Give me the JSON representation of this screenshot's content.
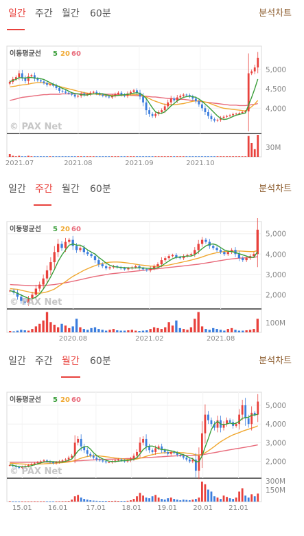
{
  "tabs": [
    "일간",
    "주간",
    "월간",
    "60분"
  ],
  "analysis_label": "분석차트",
  "legend": {
    "title": "이동평균선",
    "ma5": "5",
    "ma20": "20",
    "ma60": "60"
  },
  "watermark": "PAX Net",
  "colors": {
    "up": "#e8413c",
    "down": "#3b7ddd",
    "ma5": "#3a9e3a",
    "ma20": "#f0a830",
    "ma60": "#e86a7a",
    "accent": "#e8413c"
  },
  "chart_data": [
    {
      "type": "candlestick",
      "period": "일간",
      "active_tab": 0,
      "y_ticks": [
        4000,
        4500,
        5000
      ],
      "y_tick_labels": [
        "4,000",
        "4,500",
        "5,000"
      ],
      "ylim": [
        3350,
        5600
      ],
      "volume_label": "30M",
      "volume_max": 40,
      "x_labels": [
        "2021.07",
        "2021.08",
        "2021.09",
        "2021.10"
      ],
      "x_label_positions": [
        0.05,
        0.28,
        0.52,
        0.76
      ],
      "closes": [
        4680,
        4750,
        4800,
        4900,
        4780,
        4700,
        4820,
        4850,
        4760,
        4720,
        4690,
        4650,
        4600,
        4620,
        4580,
        4520,
        4450,
        4430,
        4400,
        4380,
        4350,
        4300,
        4320,
        4380,
        4340,
        4360,
        4400,
        4420,
        4380,
        4350,
        4320,
        4300,
        4280,
        4320,
        4360,
        4400,
        4350,
        4320,
        4380,
        4420,
        4460,
        4400,
        4300,
        4150,
        3950,
        3850,
        3800,
        3850,
        3900,
        3950,
        4050,
        4150,
        4250,
        4200,
        4280,
        4320,
        4350,
        4340,
        4300,
        4250,
        4180,
        4100,
        4000,
        3900,
        3800,
        3720,
        3680,
        3700,
        3750,
        3780,
        3800,
        3820,
        3850,
        3860,
        3880,
        3900,
        3920,
        4900,
        4950,
        5050,
        5300
      ],
      "ma5": [
        4680,
        4720,
        4740,
        4790,
        4780,
        4780,
        4790,
        4790,
        4780,
        4770,
        4760,
        4740,
        4700,
        4660,
        4620,
        4590,
        4550,
        4510,
        4480,
        4440,
        4400,
        4380,
        4370,
        4350,
        4340,
        4340,
        4360,
        4370,
        4380,
        4380,
        4370,
        4350,
        4330,
        4310,
        4320,
        4330,
        4340,
        4350,
        4360,
        4370,
        4390,
        4400,
        4380,
        4330,
        4250,
        4130,
        4010,
        3910,
        3870,
        3870,
        3910,
        3980,
        4060,
        4120,
        4190,
        4240,
        4280,
        4300,
        4310,
        4300,
        4280,
        4240,
        4180,
        4110,
        4040,
        3960,
        3880,
        3800,
        3740,
        3710,
        3720,
        3750,
        3790,
        3820,
        3840,
        3860,
        3880,
        4080,
        4280,
        4500,
        4750
      ],
      "ma20": [
        4550,
        4560,
        4570,
        4590,
        4600,
        4610,
        4620,
        4640,
        4650,
        4660,
        4660,
        4650,
        4640,
        4620,
        4600,
        4580,
        4560,
        4540,
        4520,
        4500,
        4480,
        4460,
        4440,
        4420,
        4400,
        4390,
        4380,
        4370,
        4360,
        4350,
        4340,
        4330,
        4330,
        4330,
        4330,
        4330,
        4330,
        4330,
        4330,
        4340,
        4350,
        4350,
        4340,
        4320,
        4290,
        4250,
        4210,
        4180,
        4150,
        4120,
        4100,
        4090,
        4090,
        4090,
        4100,
        4110,
        4120,
        4140,
        4160,
        4180,
        4190,
        4190,
        4180,
        4160,
        4140,
        4110,
        4080,
        4050,
        4020,
        4000,
        3990,
        3980,
        3970,
        3960,
        3950,
        3940,
        3930,
        3980,
        4040,
        4110,
        4200
      ],
      "ma60": [
        4200,
        4220,
        4240,
        4260,
        4280,
        4290,
        4300,
        4310,
        4320,
        4330,
        4340,
        4350,
        4350,
        4360,
        4360,
        4360,
        4360,
        4370,
        4370,
        4370,
        4370,
        4370,
        4370,
        4370,
        4370,
        4370,
        4370,
        4370,
        4370,
        4370,
        4370,
        4360,
        4360,
        4360,
        4360,
        4350,
        4350,
        4340,
        4340,
        4330,
        4330,
        4320,
        4320,
        4310,
        4310,
        4300,
        4290,
        4290,
        4280,
        4270,
        4260,
        4250,
        4250,
        4240,
        4240,
        4230,
        4230,
        4220,
        4210,
        4200,
        4190,
        4180,
        4170,
        4160,
        4150,
        4140,
        4130,
        4120,
        4110,
        4100,
        4090,
        4080,
        4080,
        4080,
        4070,
        4070,
        4070,
        4080,
        4090,
        4100,
        4120
      ],
      "volumes": [
        5,
        2,
        1,
        2,
        1,
        1,
        2,
        1,
        1,
        1,
        1,
        1,
        1,
        1,
        1,
        1,
        1,
        1,
        1,
        1,
        1,
        1,
        1,
        1,
        1,
        1,
        1,
        1,
        1,
        1,
        1,
        1,
        1,
        1,
        1,
        1,
        1,
        1,
        1,
        1,
        1,
        1,
        1,
        1,
        1,
        1,
        1,
        1,
        1,
        1,
        1,
        1,
        1,
        1,
        1,
        1,
        1,
        1,
        1,
        1,
        1,
        1,
        1,
        1,
        1,
        1,
        1,
        1,
        1,
        1,
        1,
        1,
        1,
        1,
        1,
        1,
        1,
        38,
        25,
        14,
        40
      ]
    },
    {
      "type": "candlestick",
      "period": "주간",
      "active_tab": 1,
      "y_ticks": [
        2000,
        3000,
        4000,
        5000
      ],
      "y_tick_labels": [
        "2,000",
        "3,000",
        "4,000",
        "5,000"
      ],
      "ylim": [
        1300,
        5600
      ],
      "volume_label": "100M",
      "volume_max": 130,
      "x_labels": [
        "2020.08",
        "2021.02",
        "2021.08"
      ],
      "x_label_positions": [
        0.26,
        0.56,
        0.84
      ],
      "closes": [
        2200,
        2100,
        1900,
        1700,
        1600,
        1800,
        2000,
        2300,
        2500,
        2800,
        3200,
        3600,
        4100,
        4500,
        4300,
        4600,
        4700,
        4400,
        4200,
        4300,
        4100,
        4000,
        3900,
        3700,
        3500,
        3400,
        3300,
        3350,
        3400,
        3350,
        3300,
        3250,
        3300,
        3350,
        3400,
        3300,
        3250,
        3200,
        3300,
        3400,
        3500,
        3700,
        3800,
        3900,
        3950,
        3850,
        3800,
        3900,
        3950,
        4000,
        4200,
        4500,
        4700,
        4600,
        4400,
        4300,
        4200,
        4100,
        4000,
        4100,
        4200,
        4000,
        3800,
        3700,
        3800,
        3900,
        4000,
        5200
      ],
      "ma5": [
        2200,
        2150,
        2070,
        1980,
        1900,
        1820,
        1800,
        1880,
        2040,
        2280,
        2560,
        2880,
        3240,
        3640,
        3940,
        4200,
        4440,
        4500,
        4440,
        4440,
        4340,
        4200,
        4100,
        4000,
        3840,
        3700,
        3560,
        3450,
        3390,
        3360,
        3340,
        3330,
        3320,
        3310,
        3320,
        3320,
        3320,
        3300,
        3290,
        3290,
        3330,
        3420,
        3540,
        3660,
        3770,
        3840,
        3860,
        3880,
        3900,
        3900,
        3970,
        4110,
        4270,
        4400,
        4480,
        4500,
        4440,
        4320,
        4200,
        4140,
        4120,
        4080,
        4020,
        3960,
        3900,
        3840,
        3840,
        4120
      ],
      "ma20": [
        2300,
        2280,
        2260,
        2220,
        2180,
        2140,
        2100,
        2080,
        2080,
        2100,
        2140,
        2200,
        2280,
        2400,
        2520,
        2640,
        2780,
        2900,
        3000,
        3100,
        3200,
        3280,
        3360,
        3430,
        3490,
        3540,
        3580,
        3600,
        3610,
        3610,
        3600,
        3580,
        3560,
        3530,
        3500,
        3470,
        3450,
        3430,
        3410,
        3400,
        3400,
        3410,
        3430,
        3460,
        3500,
        3540,
        3580,
        3620,
        3660,
        3700,
        3750,
        3800,
        3860,
        3920,
        3980,
        4030,
        4070,
        4100,
        4120,
        4130,
        4140,
        4150,
        4150,
        4140,
        4130,
        4120,
        4120,
        4170
      ],
      "ma60": [
        2500,
        2490,
        2480,
        2470,
        2460,
        2450,
        2440,
        2440,
        2440,
        2450,
        2460,
        2480,
        2500,
        2530,
        2560,
        2590,
        2620,
        2660,
        2700,
        2740,
        2780,
        2820,
        2860,
        2900,
        2930,
        2960,
        2990,
        3020,
        3040,
        3060,
        3080,
        3100,
        3120,
        3140,
        3160,
        3180,
        3200,
        3220,
        3240,
        3260,
        3280,
        3300,
        3320,
        3340,
        3360,
        3380,
        3400,
        3420,
        3440,
        3460,
        3480,
        3500,
        3530,
        3560,
        3590,
        3620,
        3650,
        3680,
        3710,
        3740,
        3760,
        3780,
        3800,
        3810,
        3820,
        3830,
        3840,
        3870
      ],
      "volumes": [
        8,
        6,
        10,
        15,
        12,
        10,
        20,
        35,
        50,
        70,
        120,
        60,
        45,
        30,
        50,
        40,
        25,
        35,
        80,
        30,
        20,
        15,
        25,
        30,
        20,
        15,
        10,
        15,
        20,
        12,
        10,
        10,
        12,
        15,
        10,
        8,
        10,
        12,
        20,
        30,
        25,
        20,
        30,
        60,
        40,
        70,
        25,
        20,
        15,
        30,
        80,
        120,
        35,
        20,
        15,
        25,
        20,
        15,
        10,
        20,
        25,
        15,
        10,
        10,
        12,
        15,
        20,
        80
      ]
    },
    {
      "type": "candlestick",
      "period": "월간",
      "active_tab": 2,
      "y_ticks": [
        2000,
        3000,
        4000,
        5000
      ],
      "y_tick_labels": [
        "2,000",
        "3,000",
        "4,000",
        "5,000"
      ],
      "ylim": [
        1100,
        5700
      ],
      "volume_label_top": "300M",
      "volume_label_mid": "150M",
      "volume_max": 330,
      "x_labels": [
        "15.01",
        "16.01",
        "17.01",
        "18.01",
        "19.01",
        "20.01",
        "21.01"
      ],
      "x_label_positions": [
        0.06,
        0.2,
        0.35,
        0.49,
        0.63,
        0.77,
        0.91
      ],
      "closes": [
        1800,
        1750,
        1700,
        1650,
        1700,
        1750,
        1800,
        1850,
        1900,
        1950,
        2000,
        2050,
        2000,
        1950,
        1900,
        1950,
        2000,
        2050,
        2100,
        2200,
        2300,
        3000,
        3200,
        2800,
        2600,
        2400,
        2300,
        2200,
        2100,
        2050,
        2000,
        1950,
        1950,
        2000,
        2050,
        2100,
        2050,
        2000,
        2050,
        2150,
        2300,
        2500,
        3000,
        3200,
        2800,
        2600,
        2500,
        2700,
        2800,
        2600,
        2500,
        2400,
        2500,
        2450,
        2350,
        2300,
        2200,
        2100,
        2000,
        2100,
        1500,
        2300,
        3500,
        4500,
        4200,
        4000,
        3800,
        4200,
        3800,
        4000,
        4200,
        4100,
        3900,
        4000,
        4500,
        5000,
        4300,
        4000,
        4600,
        4500,
        5200
      ],
      "ma5": [
        1820,
        1790,
        1750,
        1720,
        1710,
        1710,
        1730,
        1770,
        1820,
        1870,
        1920,
        1970,
        1990,
        1990,
        1980,
        1970,
        1960,
        1970,
        2000,
        2060,
        2130,
        2330,
        2560,
        2700,
        2780,
        2800,
        2660,
        2460,
        2320,
        2210,
        2130,
        2060,
        2010,
        1990,
        1990,
        2010,
        2030,
        2040,
        2050,
        2070,
        2110,
        2200,
        2400,
        2630,
        2760,
        2820,
        2820,
        2760,
        2680,
        2640,
        2620,
        2600,
        2560,
        2530,
        2460,
        2400,
        2360,
        2280,
        2190,
        2140,
        1980,
        1990,
        2280,
        2760,
        3200,
        3700,
        4000,
        4140,
        4000,
        3960,
        4000,
        4060,
        4000,
        4040,
        4140,
        4300,
        4340,
        4360,
        4480,
        4480,
        4520
      ],
      "ma20": [
        1900,
        1890,
        1880,
        1870,
        1860,
        1850,
        1840,
        1840,
        1840,
        1850,
        1860,
        1870,
        1880,
        1890,
        1900,
        1910,
        1920,
        1930,
        1950,
        1970,
        2000,
        2050,
        2110,
        2170,
        2220,
        2260,
        2290,
        2300,
        2300,
        2290,
        2270,
        2250,
        2230,
        2200,
        2180,
        2160,
        2140,
        2120,
        2110,
        2100,
        2110,
        2130,
        2170,
        2220,
        2270,
        2320,
        2360,
        2400,
        2430,
        2450,
        2460,
        2470,
        2480,
        2480,
        2480,
        2470,
        2460,
        2440,
        2420,
        2400,
        2350,
        2340,
        2380,
        2460,
        2560,
        2680,
        2800,
        2930,
        3050,
        3150,
        3250,
        3340,
        3420,
        3480,
        3540,
        3610,
        3670,
        3720,
        3780,
        3830,
        3900
      ],
      "ma60": [
        1950,
        1950,
        1950,
        1950,
        1950,
        1950,
        1950,
        1950,
        1950,
        1950,
        1950,
        1960,
        1960,
        1960,
        1970,
        1970,
        1980,
        1980,
        1990,
        2000,
        2010,
        2020,
        2030,
        2040,
        2050,
        2060,
        2070,
        2080,
        2090,
        2100,
        2110,
        2110,
        2120,
        2120,
        2130,
        2130,
        2140,
        2140,
        2150,
        2150,
        2160,
        2170,
        2180,
        2190,
        2200,
        2210,
        2220,
        2230,
        2240,
        2250,
        2260,
        2270,
        2280,
        2290,
        2300,
        2300,
        2310,
        2310,
        2310,
        2320,
        2320,
        2330,
        2350,
        2380,
        2410,
        2440,
        2470,
        2500,
        2530,
        2560,
        2590,
        2620,
        2650,
        2680,
        2700,
        2730,
        2760,
        2790,
        2820,
        2850,
        2880
      ],
      "volumes": [
        8,
        5,
        4,
        4,
        5,
        4,
        4,
        5,
        6,
        5,
        5,
        6,
        5,
        4,
        5,
        5,
        6,
        7,
        8,
        10,
        30,
        80,
        100,
        60,
        40,
        30,
        20,
        15,
        12,
        10,
        10,
        10,
        10,
        10,
        12,
        10,
        10,
        10,
        12,
        20,
        40,
        80,
        130,
        90,
        60,
        50,
        80,
        100,
        60,
        40,
        30,
        50,
        60,
        40,
        30,
        20,
        30,
        25,
        20,
        30,
        40,
        60,
        300,
        260,
        180,
        150,
        80,
        60,
        40,
        90,
        70,
        50,
        40,
        60,
        150,
        200,
        90,
        60,
        110,
        80,
        120
      ]
    }
  ]
}
